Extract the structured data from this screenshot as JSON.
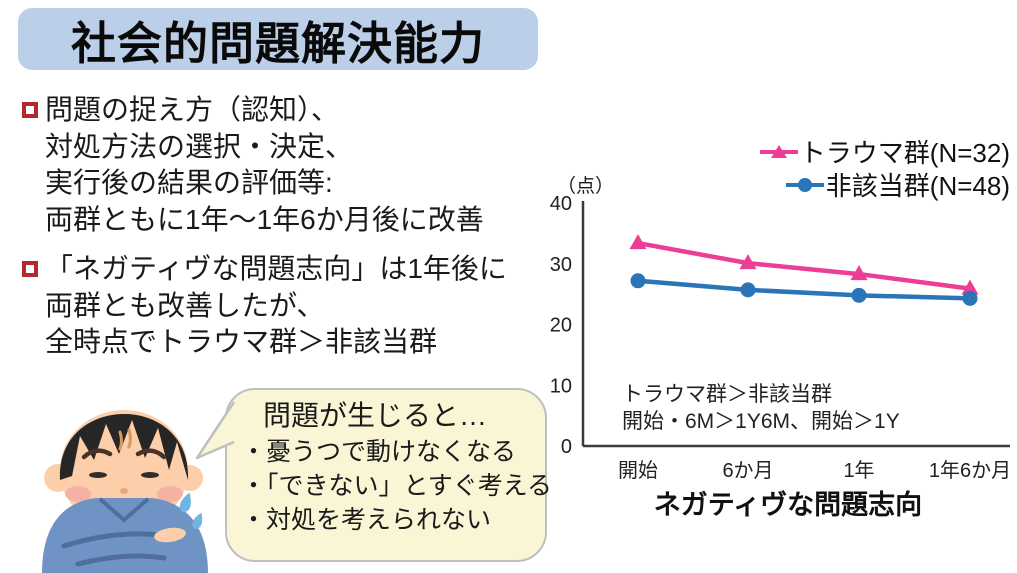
{
  "title": {
    "text": "社会的問題解決能力"
  },
  "bullets": [
    {
      "lines": [
        "問題の捉え方（認知）、",
        "対処方法の選択・決定、",
        "実行後の結果の評価等:",
        "両群ともに1年～1年6か月後に改善"
      ]
    },
    {
      "lines": [
        "「ネガティヴな問題志向」は1年後に",
        "両群とも改善したが、",
        "全時点でトラウマ群＞非該当群"
      ]
    }
  ],
  "bubble": {
    "heading": "問題が生じると…",
    "items": [
      "・憂うつで動けなくなる",
      "・「できない」とすぐ考える",
      "・対処を考えられない"
    ]
  },
  "chart_data": {
    "type": "line",
    "unit_label": "（点）",
    "categories": [
      "開始",
      "6か月",
      "1年",
      "1年6か月"
    ],
    "series": [
      {
        "name": "トラウマ群(N=32)",
        "color": "#ec3e95",
        "marker": "triangle",
        "values": [
          33.4,
          30.1,
          28.3,
          25.9
        ]
      },
      {
        "name": "非該当群(N=48)",
        "color": "#2a74b8",
        "marker": "circle",
        "values": [
          27.2,
          25.7,
          24.8,
          24.3
        ]
      }
    ],
    "ylim": [
      0,
      40
    ],
    "yticks": [
      0,
      10,
      20,
      30,
      40
    ],
    "xlabel": "ネガティヴな問題志向",
    "annotation": [
      "トラウマ群＞非該当群",
      "開始・6M＞1Y6M、開始＞1Y"
    ],
    "legend_position": "top-right",
    "grid": false,
    "axis_color": "#3a3a3a"
  },
  "colors": {
    "title_bg": "#bccfe9",
    "bullet_marker": "#b3282d",
    "bubble_bg": "#faf6d5",
    "bubble_border": "#bfbfbf"
  }
}
